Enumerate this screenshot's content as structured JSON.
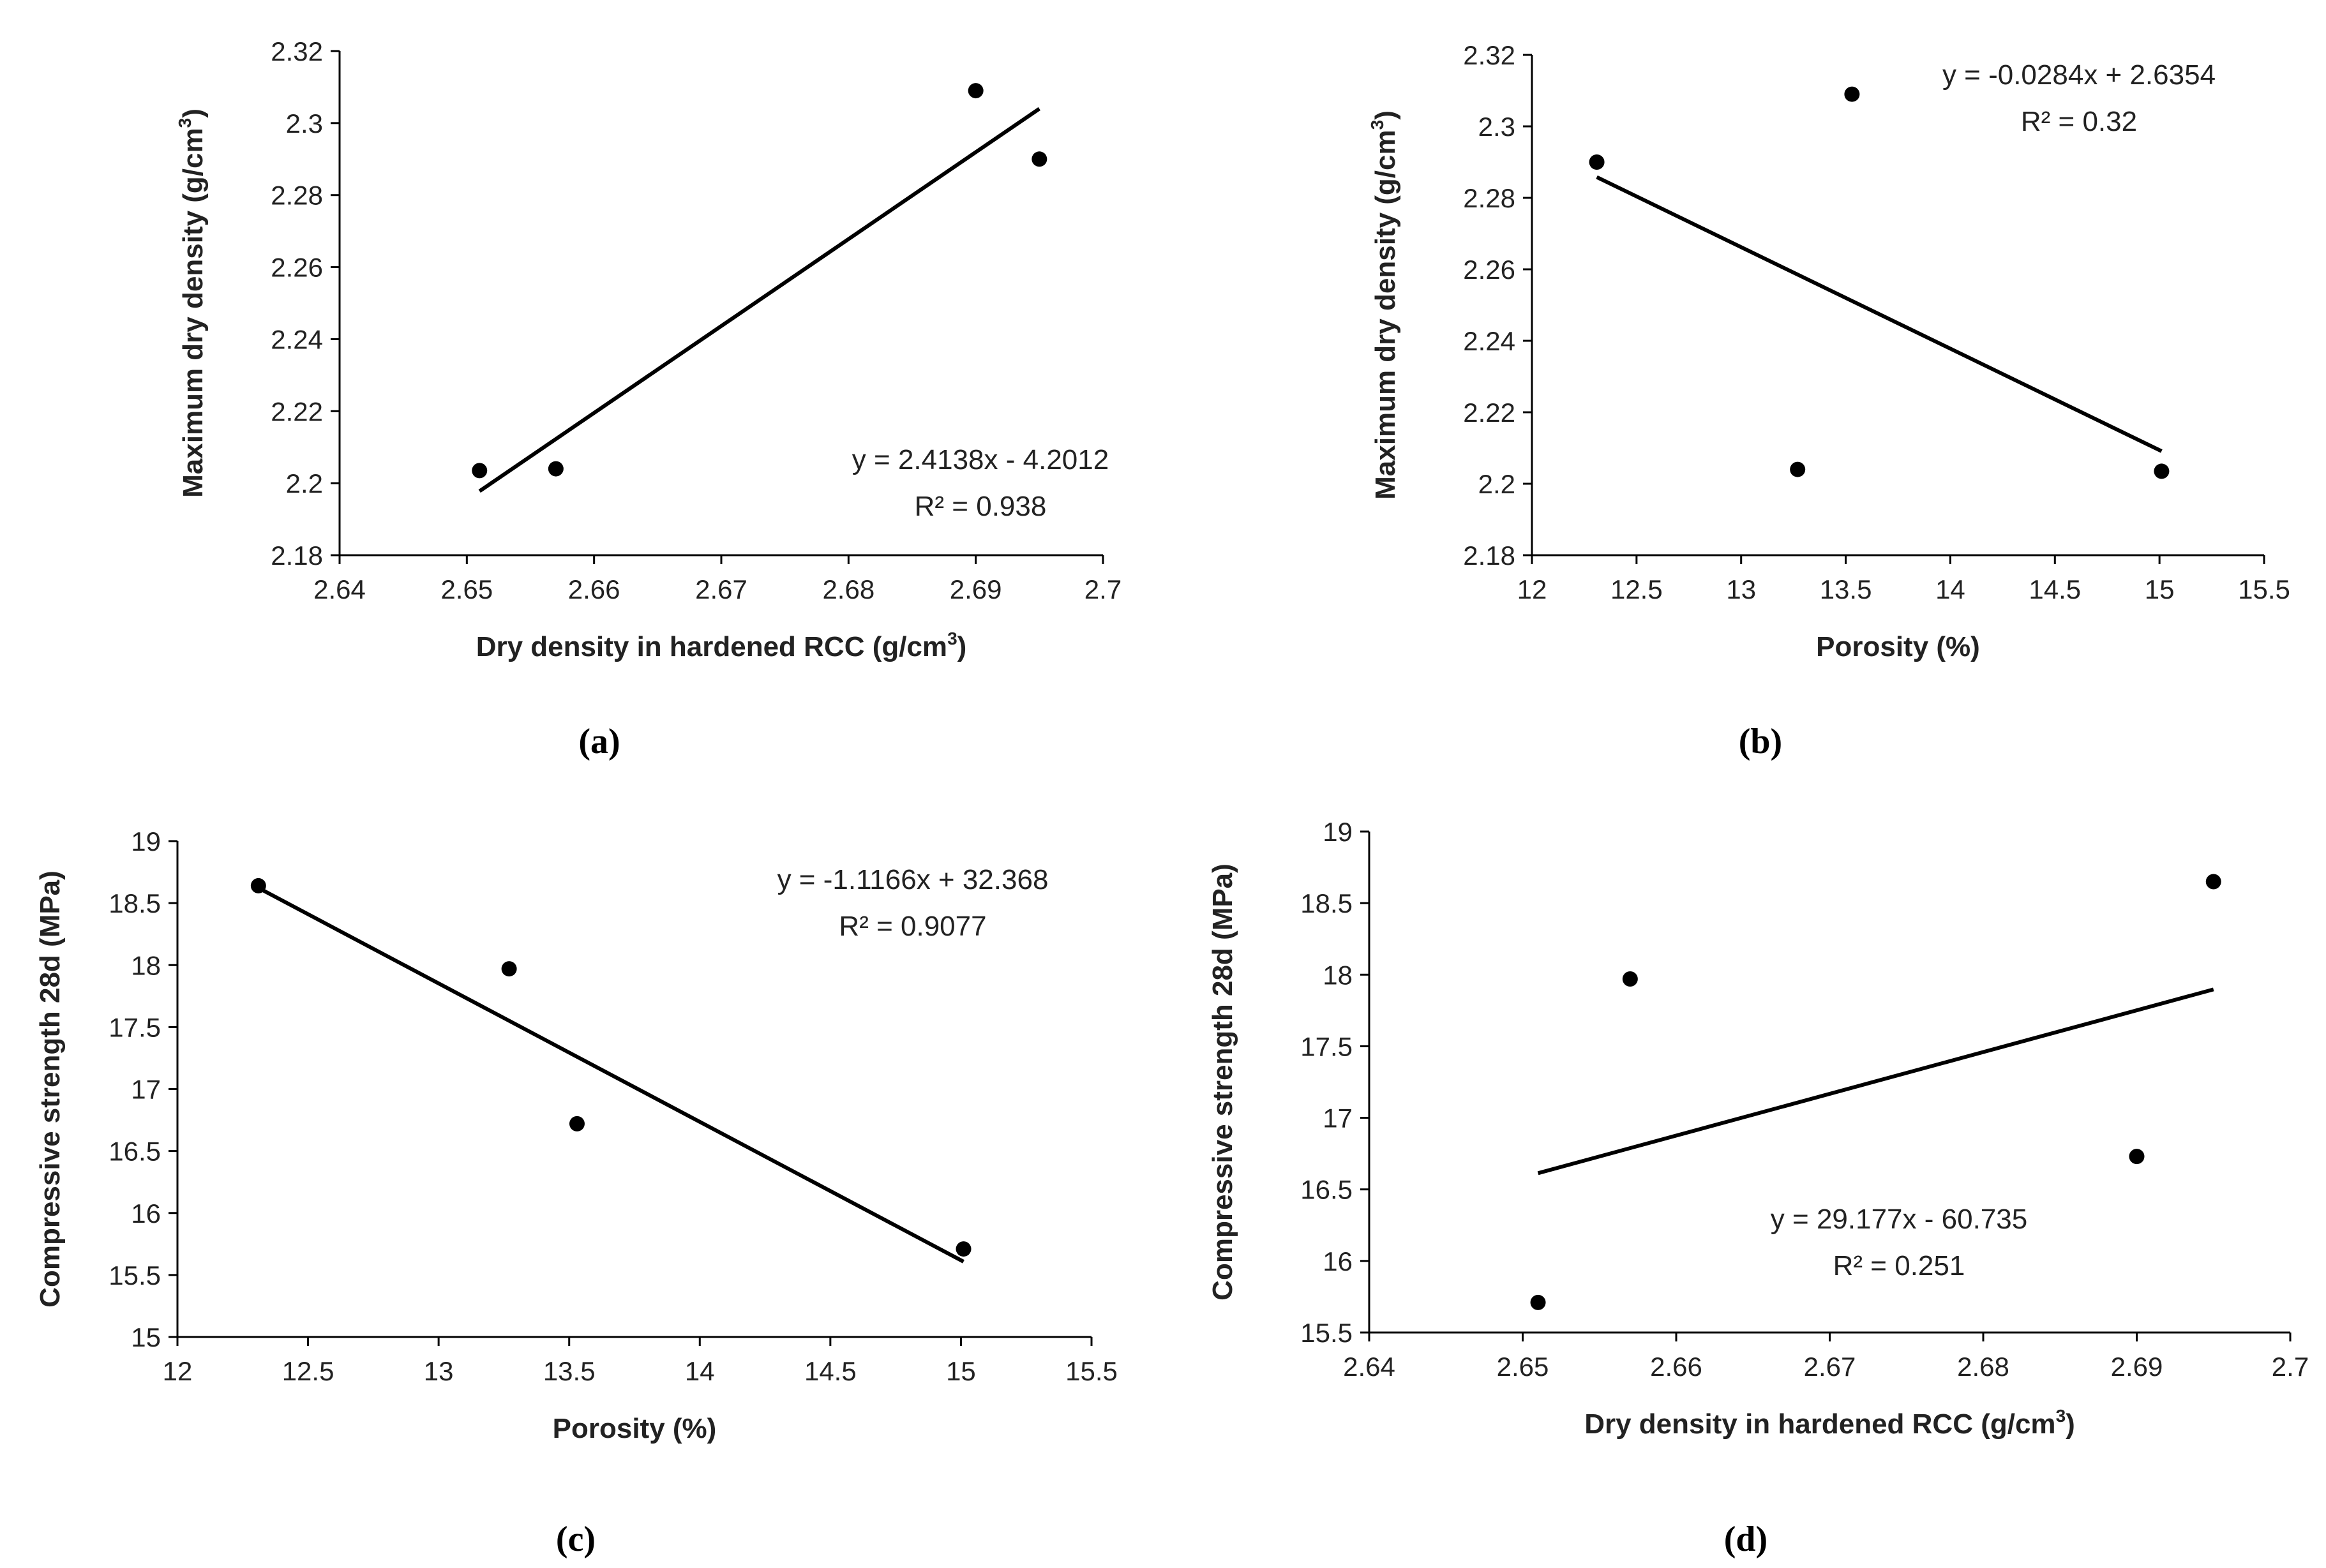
{
  "chart_data": [
    {
      "type": "scatter",
      "panel_label": "(a)",
      "xlabel": {
        "text": "Dry density in hardened RCC (g/cm",
        "sup": "3",
        "tail": ")"
      },
      "ylabel": {
        "text": "Maximum dry density (g/cm",
        "sup": "3",
        "tail": ")"
      },
      "xlim": [
        2.64,
        2.7
      ],
      "ylim": [
        2.18,
        2.32
      ],
      "xticks": [
        "2.64",
        "2.65",
        "2.66",
        "2.67",
        "2.68",
        "2.69",
        "2.7"
      ],
      "yticks": [
        "2.18",
        "2.2",
        "2.22",
        "2.24",
        "2.26",
        "2.28",
        "2.3",
        "2.32"
      ],
      "points": [
        {
          "x": 2.651,
          "y": 2.2035
        },
        {
          "x": 2.657,
          "y": 2.204
        },
        {
          "x": 2.69,
          "y": 2.309
        },
        {
          "x": 2.695,
          "y": 2.29
        }
      ],
      "trendline": {
        "slope": 2.4138,
        "intercept": -4.2012,
        "x_range": [
          2.651,
          2.695
        ]
      },
      "equation": "y = 2.4138x - 4.2012",
      "r2": "R² = 0.938",
      "grid": false
    },
    {
      "type": "scatter",
      "panel_label": "(b)",
      "xlabel": {
        "text": "Porosity (%)",
        "sup": "",
        "tail": ""
      },
      "ylabel": {
        "text": "Maximum dry density (g/cm",
        "sup": "3",
        "tail": ")"
      },
      "xlim": [
        12,
        15.5
      ],
      "ylim": [
        2.18,
        2.32
      ],
      "xticks": [
        "12",
        "12.5",
        "13",
        "13.5",
        "14",
        "14.5",
        "15",
        "15.5"
      ],
      "yticks": [
        "2.18",
        "2.2",
        "2.22",
        "2.24",
        "2.26",
        "2.28",
        "2.3",
        "2.32"
      ],
      "points": [
        {
          "x": 12.31,
          "y": 2.29
        },
        {
          "x": 13.27,
          "y": 2.204
        },
        {
          "x": 13.53,
          "y": 2.309
        },
        {
          "x": 15.01,
          "y": 2.2035
        }
      ],
      "trendline": {
        "slope": -0.0284,
        "intercept": 2.6354,
        "x_range": [
          12.31,
          15.01
        ]
      },
      "equation": "y = -0.0284x + 2.6354",
      "r2": "R² = 0.32",
      "grid": false
    },
    {
      "type": "scatter",
      "panel_label": "(c)",
      "xlabel": {
        "text": "Porosity (%)",
        "sup": "",
        "tail": ""
      },
      "ylabel": {
        "text": "Compressive strength 28d (MPa)",
        "sup": "",
        "tail": ""
      },
      "xlim": [
        12,
        15.5
      ],
      "ylim": [
        15,
        19
      ],
      "xticks": [
        "12",
        "12.5",
        "13",
        "13.5",
        "14",
        "14.5",
        "15",
        "15.5"
      ],
      "yticks": [
        "15",
        "15.5",
        "16",
        "16.5",
        "17",
        "17.5",
        "18",
        "18.5",
        "19"
      ],
      "points": [
        {
          "x": 12.31,
          "y": 18.64
        },
        {
          "x": 13.27,
          "y": 17.97
        },
        {
          "x": 13.53,
          "y": 16.72
        },
        {
          "x": 15.01,
          "y": 15.71
        }
      ],
      "trendline": {
        "slope": -1.1166,
        "intercept": 32.368,
        "x_range": [
          12.31,
          15.01
        ]
      },
      "equation": "y = -1.1166x + 32.368",
      "r2": "R² = 0.9077",
      "grid": false
    },
    {
      "type": "scatter",
      "panel_label": "(d)",
      "xlabel": {
        "text": "Dry density in hardened RCC (g/cm",
        "sup": "3",
        "tail": ")"
      },
      "ylabel": {
        "text": "Compressive strength 28d (MPa)",
        "sup": "",
        "tail": ""
      },
      "xlim": [
        2.64,
        2.7
      ],
      "ylim": [
        15.5,
        19
      ],
      "xticks": [
        "2.64",
        "2.65",
        "2.66",
        "2.67",
        "2.68",
        "2.69",
        "2.7"
      ],
      "yticks": [
        "15.5",
        "16",
        "16.5",
        "17",
        "17.5",
        "18",
        "18.5",
        "19"
      ],
      "points": [
        {
          "x": 2.651,
          "y": 15.71
        },
        {
          "x": 2.657,
          "y": 17.97
        },
        {
          "x": 2.69,
          "y": 16.73
        },
        {
          "x": 2.695,
          "y": 18.65
        }
      ],
      "trendline": {
        "slope": 29.177,
        "intercept": -60.735,
        "x_range": [
          2.651,
          2.695
        ]
      },
      "equation": "y = 29.177x - 60.735",
      "r2": "R² = 0.251",
      "grid": false
    }
  ]
}
